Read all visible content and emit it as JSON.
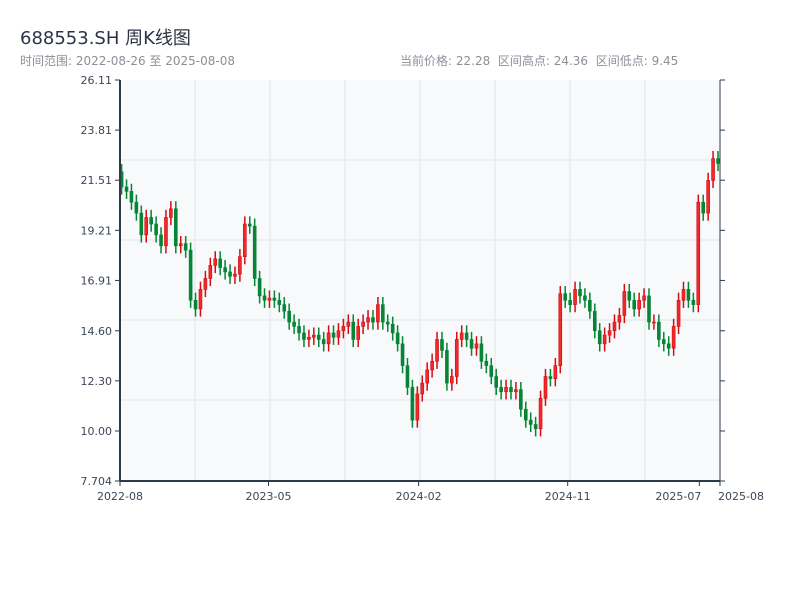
{
  "header": {
    "title": "688553.SH 周K线图",
    "range_text": "时间范围: 2022-08-26 至 2025-08-08",
    "current_price_label": "当前价格: 22.28",
    "high_label": "区间高点: 24.36",
    "low_label": "区间低点: 9.45"
  },
  "colors": {
    "up": "#d40c12",
    "down": "#058535",
    "axis": "#2d3a4a",
    "grid": "#e1e4e8",
    "plot_bg": "#f7f9fb"
  },
  "chart_data": {
    "type": "candlestick",
    "title": "688553.SH 周K线图",
    "start_date": "2022-08-26",
    "end_date": "2025-08-08",
    "xlim": [
      "2022-08-01",
      "2025-08-08"
    ],
    "ylim": [
      7.704,
      26.11
    ],
    "y_ticks": [
      "7.704",
      "10.00",
      "12.30",
      "14.60",
      "16.91",
      "19.21",
      "21.51",
      "23.81",
      "26.11"
    ],
    "x_ticks": [
      {
        "label": "2022-08",
        "date": "2022-08-01"
      },
      {
        "label": "2023-05",
        "date": "2023-05-01"
      },
      {
        "label": "2024-02",
        "date": "2024-02-01"
      },
      {
        "label": "2024-11",
        "date": "2024-11-01"
      },
      {
        "label": "2025-07",
        "date": "2025-07-01"
      },
      {
        "label": "2025-08",
        "date": "2025-08-08"
      }
    ],
    "first_open": 21.9,
    "closes": [
      21.2,
      21.0,
      20.5,
      20.0,
      19.0,
      19.8,
      19.5,
      19.0,
      18.5,
      19.8,
      20.2,
      18.5,
      18.6,
      18.3,
      16.0,
      15.6,
      16.5,
      17.0,
      17.6,
      17.9,
      17.5,
      17.3,
      17.1,
      17.2,
      18.0,
      19.5,
      19.4,
      17.0,
      16.2,
      16.0,
      16.1,
      16.0,
      15.8,
      15.5,
      15.0,
      14.8,
      14.5,
      14.2,
      14.3,
      14.4,
      14.2,
      14.0,
      14.5,
      14.3,
      14.6,
      14.8,
      15.0,
      14.2,
      14.8,
      15.0,
      15.2,
      15.0,
      15.8,
      15.0,
      14.9,
      14.5,
      14.0,
      13.0,
      12.0,
      10.5,
      11.7,
      12.2,
      12.8,
      13.2,
      14.2,
      13.7,
      12.2,
      12.5,
      14.2,
      14.5,
      14.2,
      13.8,
      14.0,
      13.2,
      13.0,
      12.5,
      12.0,
      11.8,
      12.0,
      11.8,
      11.9,
      11.0,
      10.5,
      10.3,
      10.1,
      11.5,
      12.5,
      12.4,
      13.0,
      16.3,
      16.0,
      15.8,
      16.5,
      16.2,
      16.0,
      15.5,
      14.6,
      14.0,
      14.4,
      14.6,
      15.0,
      15.3,
      16.4,
      16.0,
      15.6,
      16.0,
      16.2,
      15.0,
      15.0,
      14.2,
      14.0,
      13.8,
      14.8,
      16.0,
      16.5,
      16.0,
      15.8,
      20.5,
      20.0,
      21.5,
      22.5,
      22.28
    ],
    "wick_padding": 0.35,
    "range_high": 24.36,
    "range_low": 9.45
  }
}
